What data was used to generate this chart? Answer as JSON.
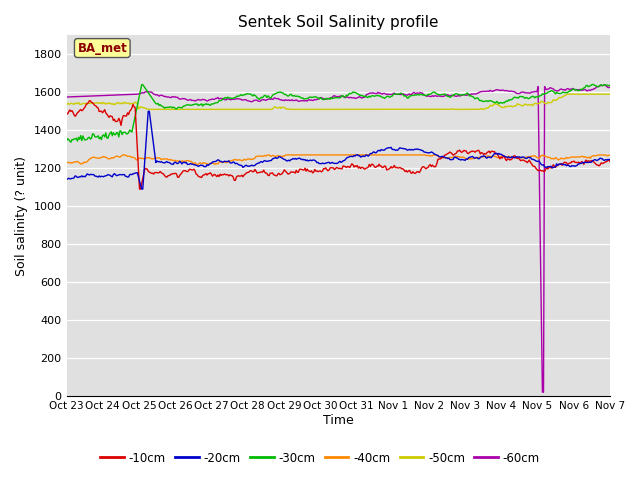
{
  "title": "Sentek Soil Salinity profile",
  "xlabel": "Time",
  "ylabel": "Soil salinity (? unit)",
  "ylim": [
    0,
    1900
  ],
  "yticks": [
    0,
    200,
    400,
    600,
    800,
    1000,
    1200,
    1400,
    1600,
    1800
  ],
  "plot_bg": "#e0e0e0",
  "fig_bg": "#ffffff",
  "annotation_text": "BA_met",
  "annotation_color": "#8b0000",
  "annotation_bg": "#ffff99",
  "series_colors": {
    "-10cm": "#dd0000",
    "-20cm": "#0000cc",
    "-30cm": "#00bb00",
    "-40cm": "#ff8800",
    "-50cm": "#cccc00",
    "-60cm": "#aa00aa"
  },
  "xtick_labels": [
    "Oct 23",
    "Oct 24",
    "Oct 25",
    "Oct 26",
    "Oct 27",
    "Oct 28",
    "Oct 29",
    "Oct 30",
    "Oct 31",
    "Nov 1",
    "Nov 2",
    "Nov 3",
    "Nov 4",
    "Nov 5",
    "Nov 6",
    "Nov 7"
  ],
  "num_points": 500
}
